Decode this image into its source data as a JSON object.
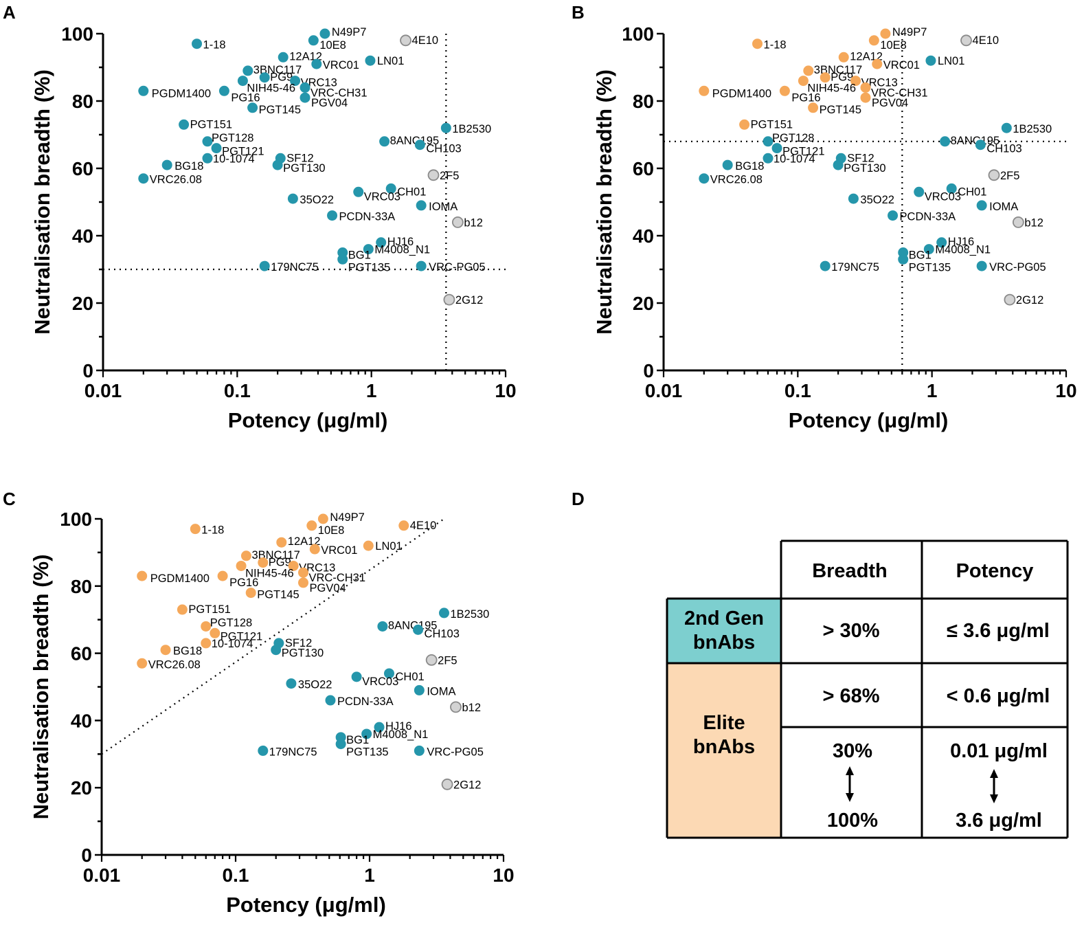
{
  "colors": {
    "second_gen": "#2596ab",
    "elite": "#f5a85a",
    "first_gen": "#d3d3d3",
    "first_gen_stroke": "#8a8a8a",
    "table_second_gen_bg": "#7dcfcf",
    "table_elite_bg": "#fcd9b4"
  },
  "chart_data": [
    {
      "panel": "A",
      "type": "scatter",
      "xlabel": "Potency (μg/ml)",
      "ylabel": "Neutralisation breadth (%)",
      "xscale": "log",
      "xlim": [
        0.01,
        10
      ],
      "ylim": [
        0,
        100
      ],
      "xticks": [
        {
          "value": 0.01,
          "label": "0.01"
        },
        {
          "value": 0.1,
          "label": "0.1"
        },
        {
          "value": 1,
          "label": "1"
        },
        {
          "value": 10,
          "label": "10"
        }
      ],
      "yticks": [
        {
          "value": 0,
          "label": "0"
        },
        {
          "value": 20,
          "label": "20"
        },
        {
          "value": 40,
          "label": "40"
        },
        {
          "value": 60,
          "label": "60"
        },
        {
          "value": 80,
          "label": "80"
        },
        {
          "value": 100,
          "label": "100"
        }
      ],
      "thresholds": [
        {
          "kind": "vertical",
          "x": 3.6
        },
        {
          "kind": "horizontal",
          "y": 30
        }
      ],
      "colorset": "A"
    },
    {
      "panel": "B",
      "type": "scatter",
      "xlabel": "Potency (μg/ml)",
      "ylabel": "Neutralisation breadth (%)",
      "xscale": "log",
      "xlim": [
        0.01,
        10
      ],
      "ylim": [
        0,
        100
      ],
      "xticks": [
        {
          "value": 0.01,
          "label": "0.01"
        },
        {
          "value": 0.1,
          "label": "0.1"
        },
        {
          "value": 1,
          "label": "1"
        },
        {
          "value": 10,
          "label": "10"
        }
      ],
      "yticks": [
        {
          "value": 0,
          "label": "0"
        },
        {
          "value": 20,
          "label": "20"
        },
        {
          "value": 40,
          "label": "40"
        },
        {
          "value": 60,
          "label": "60"
        },
        {
          "value": 80,
          "label": "80"
        },
        {
          "value": 100,
          "label": "100"
        }
      ],
      "thresholds": [
        {
          "kind": "vertical",
          "x": 0.6
        },
        {
          "kind": "horizontal",
          "y": 68
        }
      ],
      "colorset": "B"
    },
    {
      "panel": "C",
      "type": "scatter",
      "xlabel": "Potency (μg/ml)",
      "ylabel": "Neutralisation breadth (%)",
      "xscale": "log",
      "xlim": [
        0.01,
        10
      ],
      "ylim": [
        0,
        100
      ],
      "xticks": [
        {
          "value": 0.01,
          "label": "0.01"
        },
        {
          "value": 0.1,
          "label": "0.1"
        },
        {
          "value": 1,
          "label": "1"
        },
        {
          "value": 10,
          "label": "10"
        }
      ],
      "yticks": [
        {
          "value": 0,
          "label": "0"
        },
        {
          "value": 20,
          "label": "20"
        },
        {
          "value": 40,
          "label": "40"
        },
        {
          "value": 60,
          "label": "60"
        },
        {
          "value": 80,
          "label": "80"
        },
        {
          "value": 100,
          "label": "100"
        }
      ],
      "thresholds": [
        {
          "kind": "diagonal",
          "from": [
            0.01,
            30
          ],
          "to": [
            3.6,
            100
          ]
        }
      ],
      "colorset": "C"
    }
  ],
  "antibodies": [
    {
      "name": "N49P7",
      "x": 0.45,
      "y": 100,
      "cls": {
        "A": "second_gen",
        "B": "elite",
        "C": "elite"
      }
    },
    {
      "name": "10E8",
      "x": 0.37,
      "y": 98,
      "cls": {
        "A": "second_gen",
        "B": "elite",
        "C": "elite"
      }
    },
    {
      "name": "4E10",
      "x": 1.8,
      "y": 98,
      "cls": {
        "A": "first_gen",
        "B": "first_gen",
        "C": "elite"
      }
    },
    {
      "name": "1-18",
      "x": 0.05,
      "y": 97,
      "cls": {
        "A": "second_gen",
        "B": "elite",
        "C": "elite"
      }
    },
    {
      "name": "12A12",
      "x": 0.22,
      "y": 93,
      "cls": {
        "A": "second_gen",
        "B": "elite",
        "C": "elite"
      }
    },
    {
      "name": "LN01",
      "x": 0.98,
      "y": 92,
      "cls": {
        "A": "second_gen",
        "B": "second_gen",
        "C": "elite"
      }
    },
    {
      "name": "VRC01",
      "x": 0.39,
      "y": 91,
      "cls": {
        "A": "second_gen",
        "B": "elite",
        "C": "elite"
      }
    },
    {
      "name": "3BNC117",
      "x": 0.12,
      "y": 89,
      "cls": {
        "A": "second_gen",
        "B": "elite",
        "C": "elite"
      }
    },
    {
      "name": "PG9",
      "x": 0.16,
      "y": 87,
      "cls": {
        "A": "second_gen",
        "B": "elite",
        "C": "elite"
      }
    },
    {
      "name": "VRC13",
      "x": 0.27,
      "y": 86,
      "cls": {
        "A": "second_gen",
        "B": "elite",
        "C": "elite"
      }
    },
    {
      "name": "NIH45-46",
      "x": 0.11,
      "y": 86,
      "cls": {
        "A": "second_gen",
        "B": "elite",
        "C": "elite"
      }
    },
    {
      "name": "VRC-CH31",
      "x": 0.32,
      "y": 84,
      "cls": {
        "A": "second_gen",
        "B": "elite",
        "C": "elite"
      }
    },
    {
      "name": "PGDM1400",
      "x": 0.02,
      "y": 83,
      "cls": {
        "A": "second_gen",
        "B": "elite",
        "C": "elite"
      }
    },
    {
      "name": "PG16",
      "x": 0.08,
      "y": 83,
      "cls": {
        "A": "second_gen",
        "B": "elite",
        "C": "elite"
      }
    },
    {
      "name": "PGV04",
      "x": 0.32,
      "y": 81,
      "cls": {
        "A": "second_gen",
        "B": "elite",
        "C": "elite"
      }
    },
    {
      "name": "PGT145",
      "x": 0.13,
      "y": 78,
      "cls": {
        "A": "second_gen",
        "B": "elite",
        "C": "elite"
      }
    },
    {
      "name": "PGT151",
      "x": 0.04,
      "y": 73,
      "cls": {
        "A": "second_gen",
        "B": "elite",
        "C": "elite"
      }
    },
    {
      "name": "1B2530",
      "x": 3.6,
      "y": 72,
      "cls": {
        "A": "second_gen",
        "B": "second_gen",
        "C": "second_gen"
      }
    },
    {
      "name": "PGT128",
      "x": 0.06,
      "y": 68,
      "cls": {
        "A": "second_gen",
        "B": "second_gen",
        "C": "elite"
      }
    },
    {
      "name": "8ANC195",
      "x": 1.25,
      "y": 68,
      "cls": {
        "A": "second_gen",
        "B": "second_gen",
        "C": "second_gen"
      }
    },
    {
      "name": "CH103",
      "x": 2.3,
      "y": 67,
      "cls": {
        "A": "second_gen",
        "B": "second_gen",
        "C": "second_gen"
      }
    },
    {
      "name": "PGT121",
      "x": 0.07,
      "y": 66,
      "cls": {
        "A": "second_gen",
        "B": "second_gen",
        "C": "elite"
      }
    },
    {
      "name": "10-1074",
      "x": 0.06,
      "y": 63,
      "cls": {
        "A": "second_gen",
        "B": "second_gen",
        "C": "elite"
      }
    },
    {
      "name": "SF12",
      "x": 0.21,
      "y": 63,
      "cls": {
        "A": "second_gen",
        "B": "second_gen",
        "C": "second_gen"
      }
    },
    {
      "name": "BG18",
      "x": 0.03,
      "y": 61,
      "cls": {
        "A": "second_gen",
        "B": "second_gen",
        "C": "elite"
      }
    },
    {
      "name": "PGT130",
      "x": 0.2,
      "y": 61,
      "cls": {
        "A": "second_gen",
        "B": "second_gen",
        "C": "second_gen"
      }
    },
    {
      "name": "2F5",
      "x": 2.9,
      "y": 58,
      "cls": {
        "A": "first_gen",
        "B": "first_gen",
        "C": "first_gen"
      }
    },
    {
      "name": "VRC26.08",
      "x": 0.02,
      "y": 57,
      "cls": {
        "A": "second_gen",
        "B": "second_gen",
        "C": "elite"
      }
    },
    {
      "name": "CH01",
      "x": 1.4,
      "y": 54,
      "cls": {
        "A": "second_gen",
        "B": "second_gen",
        "C": "second_gen"
      }
    },
    {
      "name": "VRC03",
      "x": 0.8,
      "y": 53,
      "cls": {
        "A": "second_gen",
        "B": "second_gen",
        "C": "second_gen"
      }
    },
    {
      "name": "35O22",
      "x": 0.26,
      "y": 51,
      "cls": {
        "A": "second_gen",
        "B": "second_gen",
        "C": "second_gen"
      }
    },
    {
      "name": "IOMA",
      "x": 2.35,
      "y": 49,
      "cls": {
        "A": "second_gen",
        "B": "second_gen",
        "C": "second_gen"
      }
    },
    {
      "name": "PCDN-33A",
      "x": 0.51,
      "y": 46,
      "cls": {
        "A": "second_gen",
        "B": "second_gen",
        "C": "second_gen"
      }
    },
    {
      "name": "b12",
      "x": 4.4,
      "y": 44,
      "cls": {
        "A": "first_gen",
        "B": "first_gen",
        "C": "first_gen"
      }
    },
    {
      "name": "HJ16",
      "x": 1.18,
      "y": 38,
      "cls": {
        "A": "second_gen",
        "B": "second_gen",
        "C": "second_gen"
      }
    },
    {
      "name": "M4008_N1",
      "x": 0.95,
      "y": 36,
      "cls": {
        "A": "second_gen",
        "B": "second_gen",
        "C": "second_gen"
      }
    },
    {
      "name": "BG1",
      "x": 0.61,
      "y": 35,
      "cls": {
        "A": "second_gen",
        "B": "second_gen",
        "C": "second_gen"
      }
    },
    {
      "name": "PGT135",
      "x": 0.61,
      "y": 33,
      "cls": {
        "A": "second_gen",
        "B": "second_gen",
        "C": "second_gen"
      }
    },
    {
      "name": "179NC75",
      "x": 0.16,
      "y": 31,
      "cls": {
        "A": "second_gen",
        "B": "second_gen",
        "C": "second_gen"
      }
    },
    {
      "name": "VRC-PG05",
      "x": 2.35,
      "y": 31,
      "cls": {
        "A": "second_gen",
        "B": "second_gen",
        "C": "second_gen"
      }
    },
    {
      "name": "2G12",
      "x": 3.8,
      "y": 21,
      "cls": {
        "A": "first_gen",
        "B": "first_gen",
        "C": "first_gen"
      }
    }
  ],
  "panel_d": {
    "letter": "D",
    "header_breadth": "Breadth",
    "header_potency": "Potency",
    "second_gen_label": "2nd Gen bnAbs",
    "second_gen_breadth": "> 30%",
    "second_gen_potency": "≤ 3.6 μg/ml",
    "elite_label": "Elite bnAbs",
    "elite_breadth": "> 68%",
    "elite_potency": "< 0.6 μg/ml",
    "elite_breadth_range_top": "30%",
    "elite_breadth_range_bottom": "100%",
    "elite_potency_range_top": "0.01 μg/ml",
    "elite_potency_range_bottom": "3.6 μg/ml"
  }
}
